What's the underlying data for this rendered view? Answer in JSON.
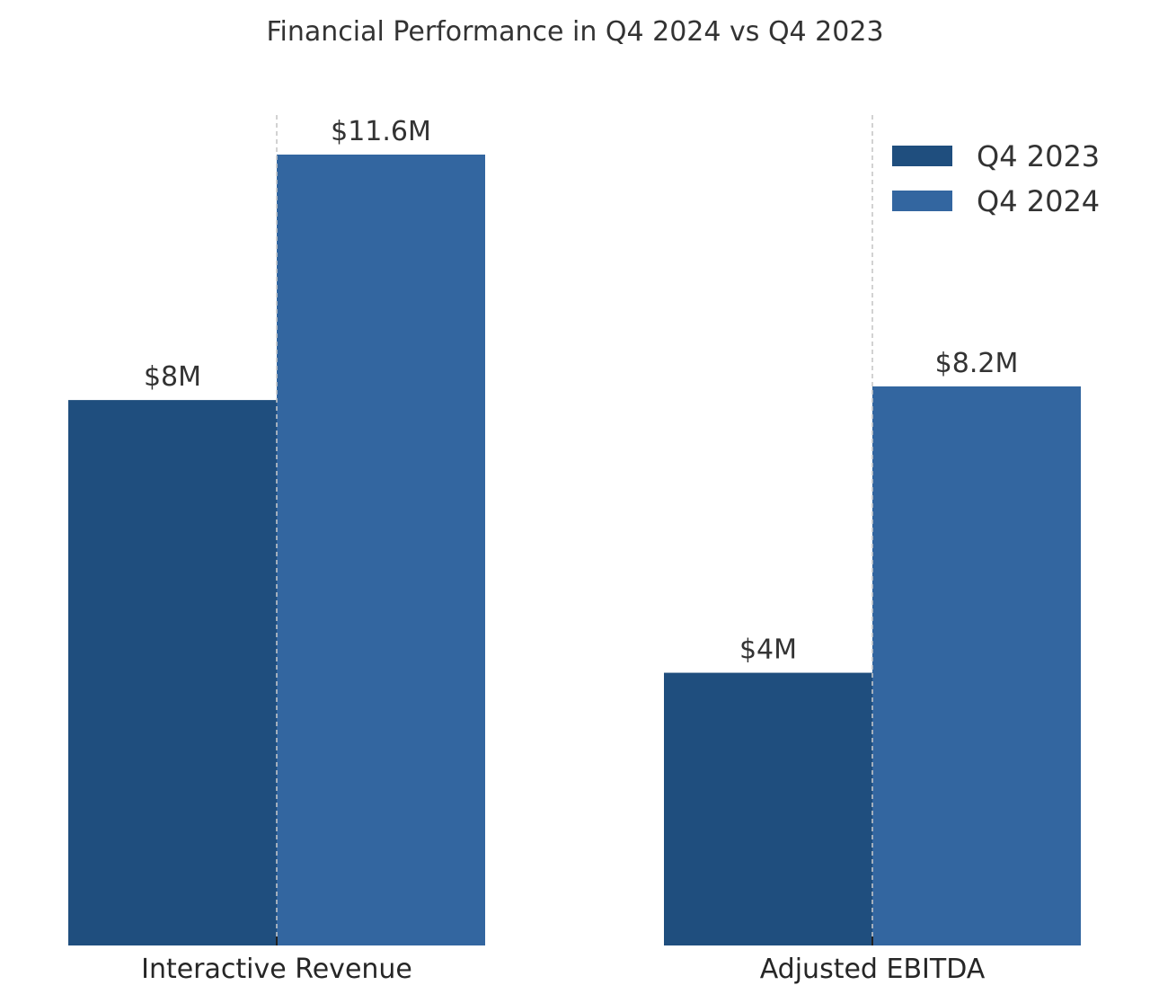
{
  "chart_data": {
    "type": "bar",
    "title": "Financial Performance in Q4 2024 vs Q4 2023",
    "categories": [
      "Interactive Revenue",
      "Adjusted EBITDA"
    ],
    "series": [
      {
        "name": "Q4 2023",
        "values": [
          8.0,
          4.0
        ],
        "labels": [
          "$8M",
          "$4M"
        ],
        "color": "#1f4e7e"
      },
      {
        "name": "Q4 2024",
        "values": [
          11.6,
          8.2
        ],
        "labels": [
          "$11.6M",
          "$8.2M"
        ],
        "color": "#3366a0"
      }
    ],
    "xlabel": "",
    "ylabel": "",
    "ylim": [
      0,
      12.18
    ],
    "grid": "x-only dashed",
    "legend_position": "top-right"
  }
}
